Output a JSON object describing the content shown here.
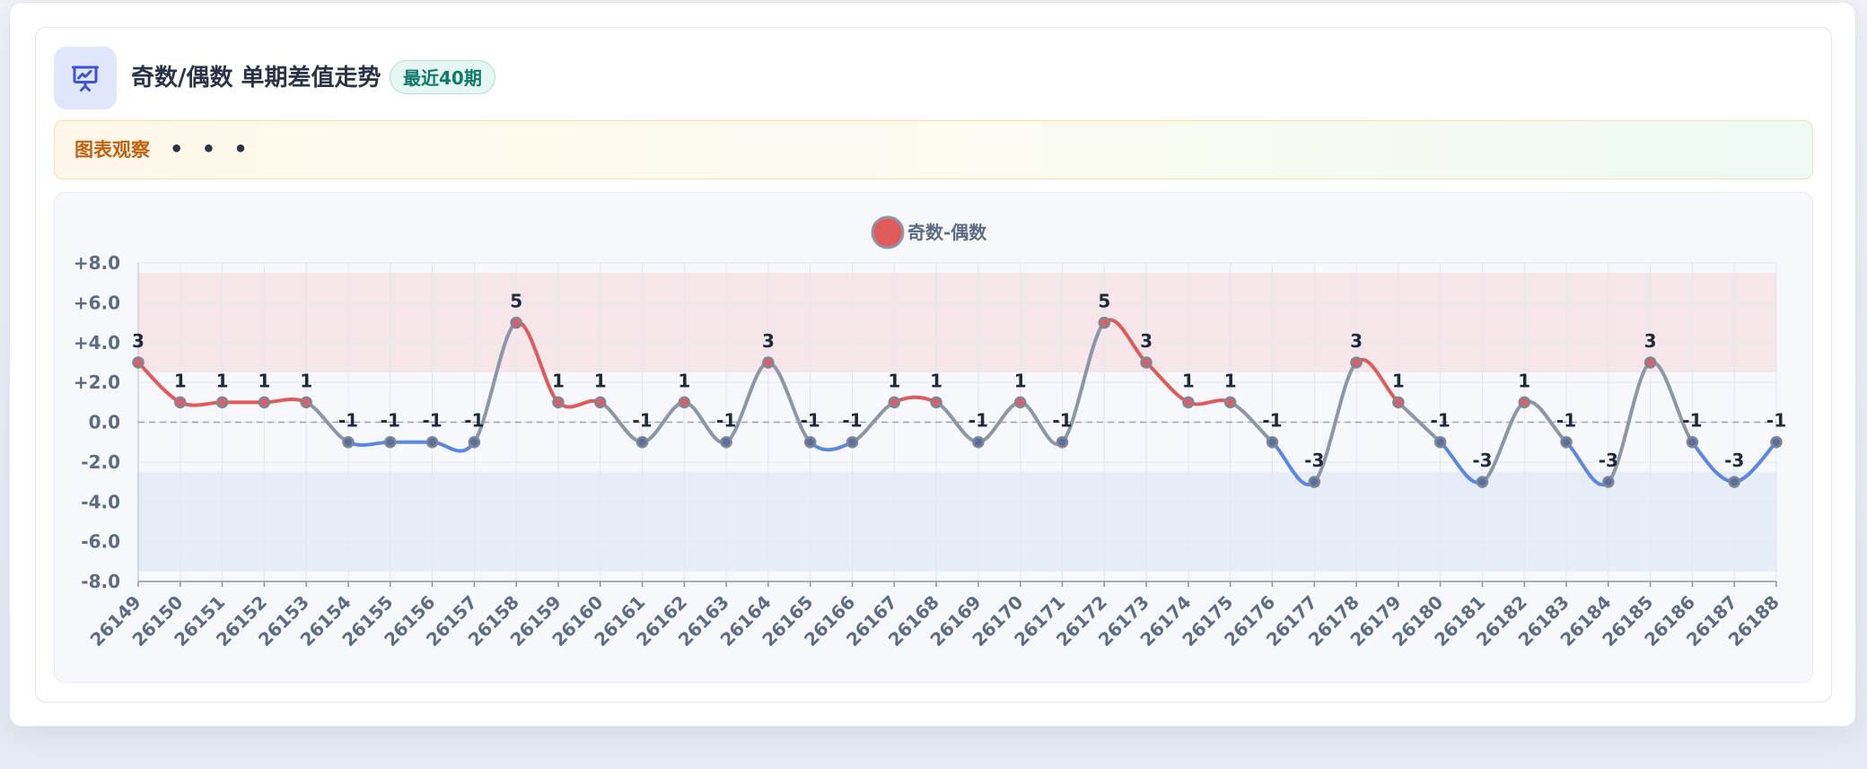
{
  "header": {
    "title": "奇数/偶数 单期差值走势",
    "badge": "最近40期",
    "icon": "presentation-chart-icon"
  },
  "observation": {
    "label": "图表观察",
    "dots": "• • •"
  },
  "colors": {
    "positive": "#e05a5a",
    "negative": "#5b86e3",
    "neutral": "#8d96a7",
    "band_top": "#f6e6e9",
    "band_bottom": "#e7edf8",
    "accent": "#3f51d9"
  },
  "chart_data": {
    "type": "line",
    "title": "",
    "xlabel": "",
    "ylabel": "",
    "ylim": [
      -8,
      8
    ],
    "yticks": [
      "+8.0",
      "+6.0",
      "+4.0",
      "+2.0",
      "0.0",
      "-2.0",
      "-4.0",
      "-6.0",
      "-8.0"
    ],
    "ytick_values": [
      8,
      6,
      4,
      2,
      0,
      -2,
      -4,
      -6,
      -8
    ],
    "grid": true,
    "legend": "top-center",
    "bands": [
      {
        "from": 2.5,
        "to": 7.5,
        "color": "#f6e6e9"
      },
      {
        "from": -7.5,
        "to": -2.5,
        "color": "#e7edf8"
      }
    ],
    "zero_line": true,
    "categories": [
      "26149",
      "26150",
      "26151",
      "26152",
      "26153",
      "26154",
      "26155",
      "26156",
      "26157",
      "26158",
      "26159",
      "26160",
      "26161",
      "26162",
      "26163",
      "26164",
      "26165",
      "26166",
      "26167",
      "26168",
      "26169",
      "26170",
      "26171",
      "26172",
      "26173",
      "26174",
      "26175",
      "26176",
      "26177",
      "26178",
      "26179",
      "26180",
      "26181",
      "26182",
      "26183",
      "26184",
      "26185",
      "26186",
      "26187",
      "26188"
    ],
    "series": [
      {
        "name": "奇数-偶数",
        "values": [
          3,
          1,
          1,
          1,
          1,
          -1,
          -1,
          -1,
          -1,
          5,
          1,
          1,
          -1,
          1,
          -1,
          3,
          -1,
          -1,
          1,
          1,
          -1,
          1,
          -1,
          5,
          3,
          1,
          1,
          -1,
          -3,
          3,
          1,
          -1,
          -3,
          1,
          -1,
          -3,
          3,
          -1,
          -3,
          -1
        ],
        "labels": [
          "3",
          "1",
          "1",
          "1",
          "1",
          "-1",
          "-1",
          "-1",
          "-1",
          "5",
          "1",
          "1",
          "-1",
          "1",
          "-1",
          "3",
          "-1",
          "-1",
          "1",
          "1",
          "-1",
          "1",
          "-1",
          "5",
          "3",
          "1",
          "1",
          "-1",
          "-3",
          "3",
          "1",
          "-1",
          "-3",
          "1",
          "-1",
          "-3",
          "3",
          "-1",
          "-3",
          "-1"
        ]
      }
    ]
  }
}
